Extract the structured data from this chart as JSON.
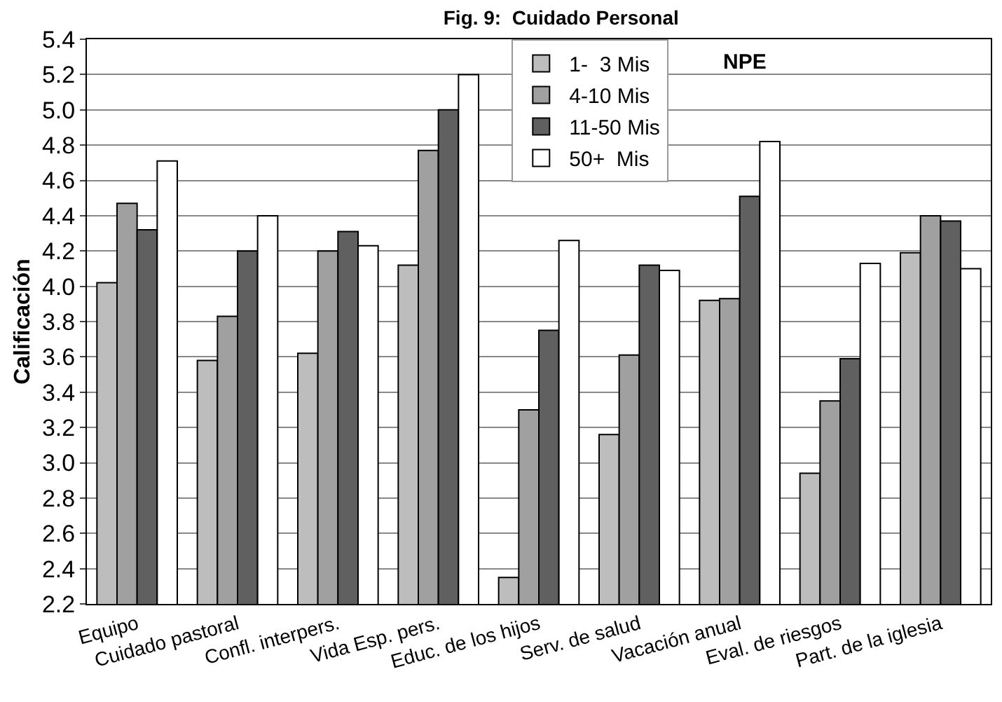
{
  "chart_data": {
    "type": "bar",
    "title": "Fig. 9:  Cuidado Personal",
    "ylabel": "Calificación",
    "annotations": [
      "NPE"
    ],
    "categories": [
      "Equipo",
      "Cuidado pastoral",
      "Confl. interpers.",
      "Vida Esp. pers.",
      "Educ. de los hijos",
      "Serv. de salud",
      "Vacación anual",
      "Eval. de riesgos",
      "Part. de la iglesia"
    ],
    "series": [
      {
        "name": "1-  3 Mis",
        "color": "#bdbdbd",
        "values": [
          4.02,
          3.58,
          3.62,
          4.12,
          2.35,
          3.16,
          3.92,
          2.94,
          4.19
        ]
      },
      {
        "name": "4-10 Mis",
        "color": "#a0a0a0",
        "values": [
          4.47,
          3.83,
          4.2,
          4.77,
          3.3,
          3.61,
          3.93,
          3.35,
          4.4
        ]
      },
      {
        "name": "11-50 Mis",
        "color": "#606060",
        "values": [
          4.32,
          4.2,
          4.31,
          5.0,
          3.75,
          4.12,
          4.51,
          3.59,
          4.37
        ]
      },
      {
        "name": "50+  Mis",
        "color": "#ffffff",
        "values": [
          4.71,
          4.4,
          4.23,
          5.2,
          4.26,
          4.09,
          4.82,
          4.13,
          4.1
        ]
      }
    ],
    "ylim": [
      2.2,
      5.4
    ],
    "yticks": [
      2.2,
      2.4,
      2.6,
      2.8,
      {
        "value": 3,
        "label": "3.0"
      },
      3.2,
      3.4,
      3.6,
      3.8,
      {
        "value": 4,
        "label": "4.0"
      },
      4.2,
      4.4,
      4.6,
      4.8,
      {
        "value": 5,
        "label": "5.0"
      },
      5.2,
      5.4
    ],
    "grid": "y",
    "legend": "top"
  }
}
